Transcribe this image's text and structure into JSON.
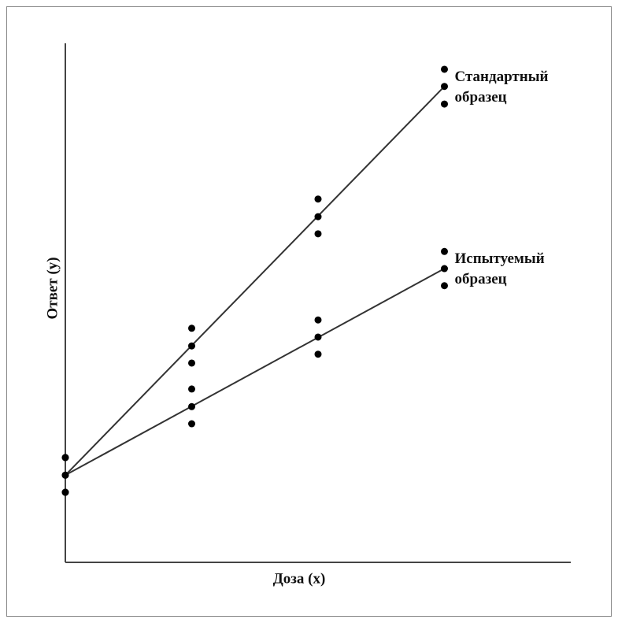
{
  "chart_data": {
    "type": "scatter",
    "xlabel": "Доза (x)",
    "ylabel": "Ответ (y)",
    "xlim": [
      0,
      4
    ],
    "ylim": [
      0,
      100
    ],
    "series": [
      {
        "name": "Стандартный образец",
        "color": "#000000",
        "x": [
          0,
          0,
          0,
          1,
          1,
          1,
          2,
          2,
          2,
          3,
          3,
          3
        ],
        "values": [
          20.2,
          16.8,
          13.5,
          45.1,
          41.7,
          38.4,
          70.0,
          66.6,
          63.3,
          95.0,
          91.7,
          88.3
        ],
        "fit_x": [
          0,
          3
        ],
        "fit_values": [
          16.8,
          91.7
        ]
      },
      {
        "name": "Испытуемый образец",
        "color": "#000000",
        "x": [
          0,
          0,
          0,
          1,
          1,
          1,
          2,
          2,
          2,
          3,
          3,
          3
        ],
        "values": [
          20.2,
          16.8,
          13.5,
          33.4,
          30.0,
          26.7,
          46.7,
          43.4,
          40.1,
          59.9,
          56.6,
          53.3
        ],
        "fit_x": [
          0,
          3
        ],
        "fit_values": [
          16.8,
          56.6
        ]
      }
    ]
  }
}
